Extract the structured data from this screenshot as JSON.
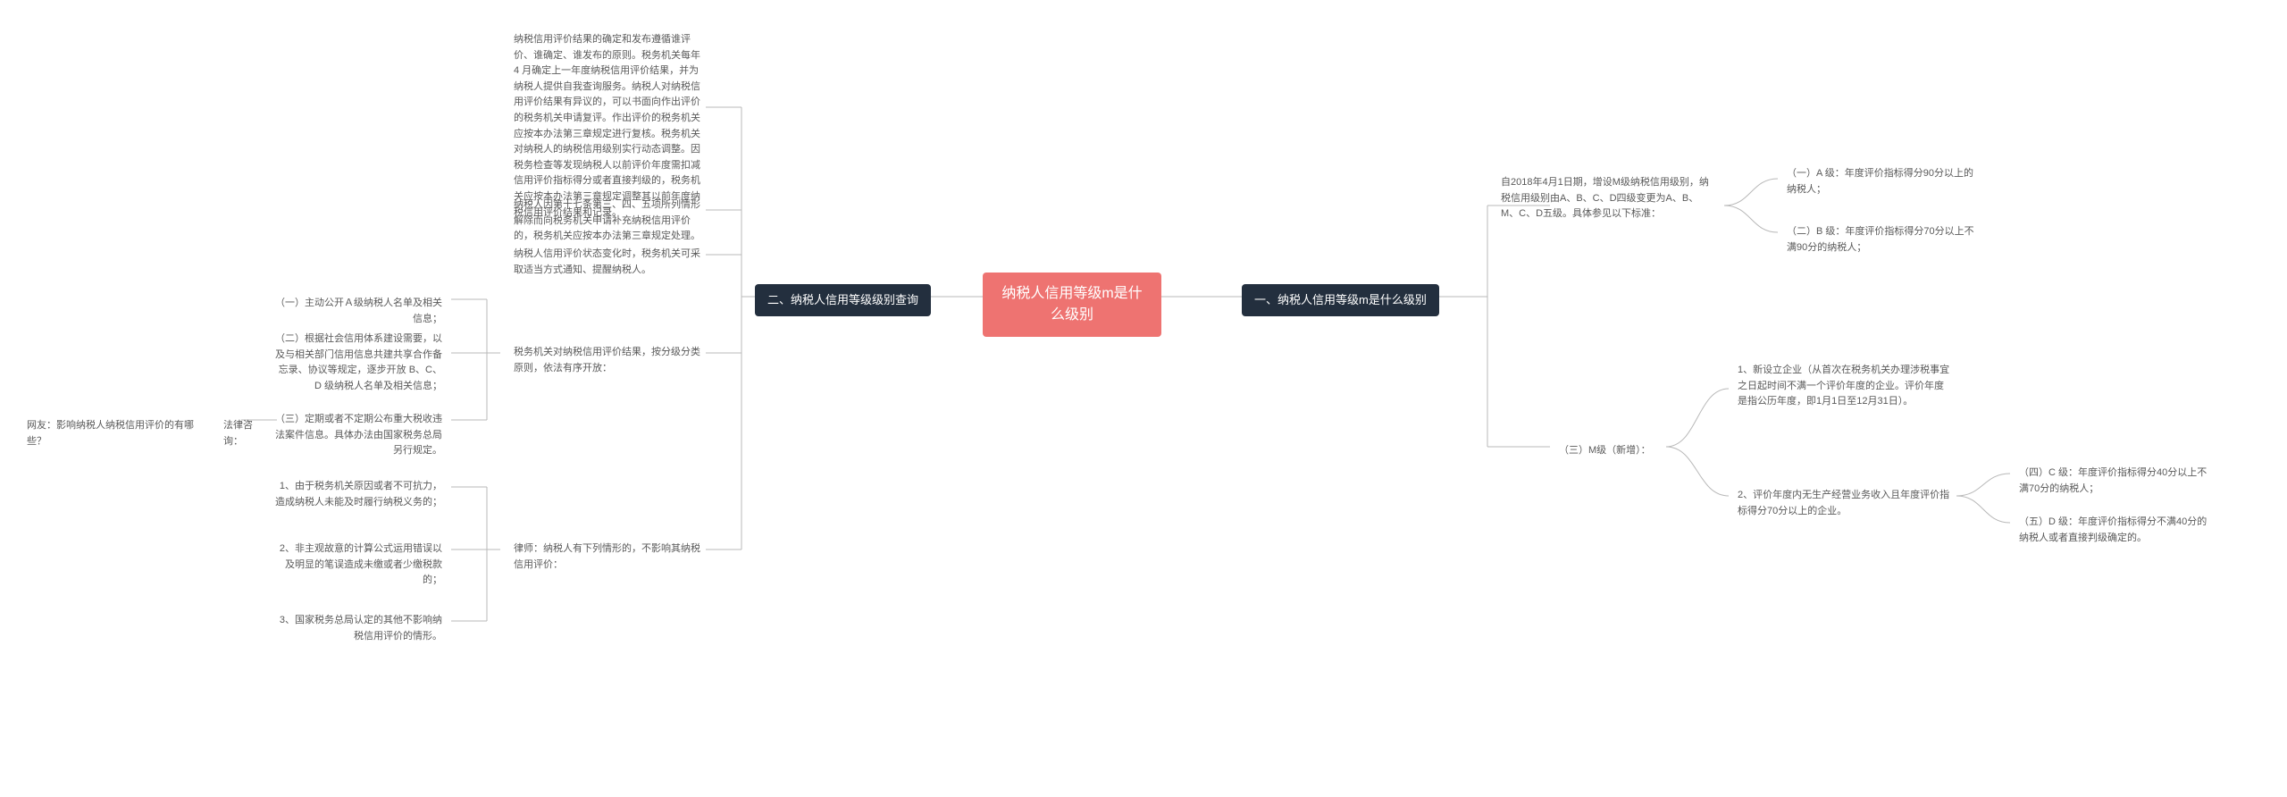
{
  "colors": {
    "center_bg": "#ee7371",
    "main_bg": "#232f3e",
    "line": "#b8b8b8",
    "text": "#595959",
    "bg": "#ffffff"
  },
  "center": {
    "title": "纳税人信用等级m是什么级别"
  },
  "right": {
    "main": "一、纳税人信用等级m是什么级别",
    "intro": "自2018年4月1日期，增设M级纳税信用级别，纳税信用级别由A、B、C、D四级变更为A、B、M、C、D五级。具体参见以下标准：",
    "a": "（一）A 级：年度评价指标得分90分以上的纳税人；",
    "b": "（二）B 级：年度评价指标得分70分以上不满90分的纳税人；",
    "m_label": "（三）M级（新增）：",
    "m1": "1、新设立企业（从首次在税务机关办理涉税事宜之日起时间不满一个评价年度的企业。评价年度是指公历年度，即1月1日至12月31日）。",
    "m2": "2、评价年度内无生产经营业务收入且年度评价指标得分70分以上的企业。",
    "c": "（四）C 级：年度评价指标得分40分以上不满70分的纳税人；",
    "d": "（五）D 级：年度评价指标得分不满40分的纳税人或者直接判级确定的。"
  },
  "left": {
    "main": "二、纳税人信用等级级别查询",
    "p1": "纳税信用评价结果的确定和发布遵循谁评价、谁确定、谁发布的原则。税务机关每年 4 月确定上一年度纳税信用评价结果，并为纳税人提供自我查询服务。纳税人对纳税信用评价结果有异议的，可以书面向作出评价的税务机关申请复评。作出评价的税务机关应按本办法第三章规定进行复核。税务机关对纳税人的纳税信用级别实行动态调整。因税务检查等发现纳税人以前评价年度需扣减信用评价指标得分或者直接判级的，税务机关应按本办法第三章规定调整其以前年度纳税信用评价结果和记录。",
    "p2": "纳税人因第十七条第三、四、五项所列情形解除而向税务机关申请补充纳税信用评价的，税务机关应按本办法第三章规定处理。",
    "p3": "纳税人信用评价状态变化时，税务机关可采取适当方式通知、提醒纳税人。",
    "p4": "税务机关对纳税信用评价结果，按分级分类原则，依法有序开放：",
    "p4_1": "（一）主动公开Ａ级纳税人名单及相关信息；",
    "p4_2": "（二）根据社会信用体系建设需要，以及与相关部门信用信息共建共享合作备忘录、协议等规定，逐步开放 B、C、D 级纳税人名单及相关信息；",
    "p4_3": "（三）定期或者不定期公布重大税收违法案件信息。具体办法由国家税务总局另行规定。",
    "qa_q": "网友：影响纳税人纳税信用评价的有哪些？",
    "qa_a": "法律咨询：",
    "p5": "律师：纳税人有下列情形的，不影响其纳税信用评价：",
    "p5_1": "1、由于税务机关原因或者不可抗力，造成纳税人未能及时履行纳税义务的；",
    "p5_2": "2、非主观故意的计算公式运用错误以及明显的笔误造成未缴或者少缴税款的；",
    "p5_3": "3、国家税务总局认定的其他不影响纳税信用评价的情形。"
  }
}
